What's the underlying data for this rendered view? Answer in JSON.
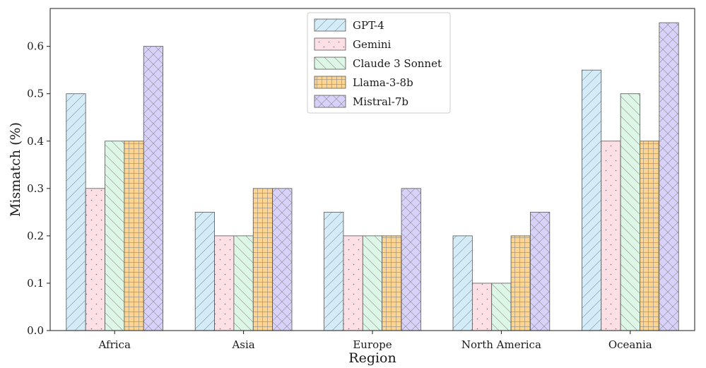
{
  "chart_data": {
    "type": "bar",
    "xlabel": "Region",
    "ylabel": "Mismatch (%)",
    "categories": [
      "Africa",
      "Asia",
      "Europe",
      "North America",
      "Oceania"
    ],
    "ylim": [
      0,
      0.68
    ],
    "yticks": [
      "0.0",
      "0.1",
      "0.2",
      "0.3",
      "0.4",
      "0.5",
      "0.6"
    ],
    "legend_position": "top-center",
    "grid": false,
    "series": [
      {
        "name": "GPT-4",
        "values": [
          0.5,
          0.25,
          0.25,
          0.2,
          0.55
        ],
        "color": "#d4ecf7",
        "hatch": "diagonal-forward"
      },
      {
        "name": "Gemini",
        "values": [
          0.3,
          0.2,
          0.2,
          0.1,
          0.4
        ],
        "color": "#fde0e6",
        "hatch": "dots"
      },
      {
        "name": "Claude 3 Sonnet",
        "values": [
          0.4,
          0.2,
          0.2,
          0.1,
          0.5
        ],
        "color": "#dcf7e6",
        "hatch": "diagonal-back"
      },
      {
        "name": "Llama-3-8b",
        "values": [
          0.4,
          0.3,
          0.2,
          0.2,
          0.4
        ],
        "color": "#fdd590",
        "hatch": "grid"
      },
      {
        "name": "Mistral-7b",
        "values": [
          0.6,
          0.3,
          0.3,
          0.25,
          0.65
        ],
        "color": "#d8d2fb",
        "hatch": "cross"
      }
    ]
  }
}
